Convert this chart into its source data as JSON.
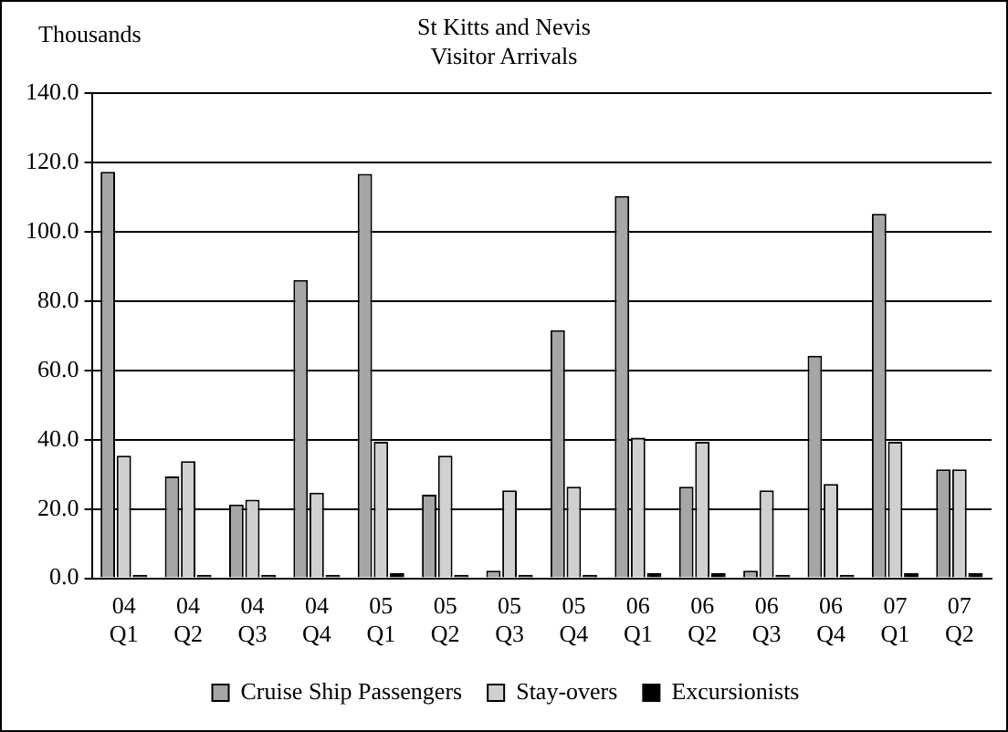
{
  "chart_data": {
    "type": "bar",
    "title": "St Kitts and Nevis",
    "subtitle": "Visitor Arrivals",
    "ylabel": "Thousands",
    "categories": [
      "04 Q1",
      "04 Q2",
      "04 Q3",
      "04 Q4",
      "05 Q1",
      "05 Q2",
      "05 Q3",
      "05 Q4",
      "06 Q1",
      "06 Q2",
      "06 Q3",
      "06 Q4",
      "07 Q1",
      "07 Q2"
    ],
    "series": [
      {
        "name": "Cruise Ship Passengers",
        "color": "#a6a6a6",
        "values": [
          117.3,
          29.4,
          21.3,
          86.1,
          116.7,
          24.1,
          2.2,
          71.6,
          110.3,
          26.4,
          2.2,
          64.2,
          105.2,
          31.4
        ]
      },
      {
        "name": "Stay-overs",
        "color": "#d0d0d0",
        "values": [
          35.4,
          33.8,
          22.7,
          24.7,
          39.4,
          35.4,
          25.4,
          26.4,
          40.6,
          39.4,
          25.4,
          27.2,
          39.4,
          31.4
        ]
      },
      {
        "name": "Excursionists",
        "color": "#000000",
        "values": [
          1,
          1,
          1,
          1,
          1.5,
          1,
          1,
          1,
          1.5,
          1.5,
          1,
          1,
          1.5,
          1.5
        ]
      }
    ],
    "ylim": [
      0,
      140
    ],
    "yticks": [
      {
        "value": 0,
        "label": "0.0"
      },
      {
        "value": 20,
        "label": "20.0"
      },
      {
        "value": 40,
        "label": "40.0"
      },
      {
        "value": 60,
        "label": "60.0"
      },
      {
        "value": 80,
        "label": "80.0"
      },
      {
        "value": 100,
        "label": "100.0"
      },
      {
        "value": 120,
        "label": "120.0"
      },
      {
        "value": 140,
        "label": "140.0"
      }
    ],
    "grid": "y",
    "legend": "bottom"
  }
}
